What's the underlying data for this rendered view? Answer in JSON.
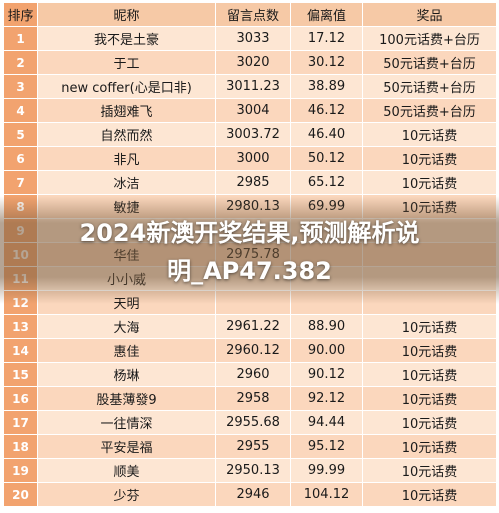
{
  "table": {
    "headers": {
      "idx": "排序",
      "name": "昵称",
      "score": "留言点数",
      "bias": "偏离值",
      "prize": "奖品"
    },
    "rows": [
      {
        "idx": "1",
        "name": "我不是土豪",
        "score": "3033",
        "bias": "17.12",
        "prize": "100元话费+台历"
      },
      {
        "idx": "2",
        "name": "于工",
        "score": "3020",
        "bias": "30.12",
        "prize": "50元话费+台历"
      },
      {
        "idx": "3",
        "name": "new coffer(心是口非)",
        "score": "3011.23",
        "bias": "38.89",
        "prize": "50元话费+台历"
      },
      {
        "idx": "4",
        "name": "插翅难飞",
        "score": "3004",
        "bias": "46.12",
        "prize": "50元话费+台历"
      },
      {
        "idx": "5",
        "name": "自然而然",
        "score": "3003.72",
        "bias": "46.40",
        "prize": "10元话费"
      },
      {
        "idx": "6",
        "name": "非凡",
        "score": "3000",
        "bias": "50.12",
        "prize": "10元话费"
      },
      {
        "idx": "7",
        "name": "冰洁",
        "score": "2985",
        "bias": "65.12",
        "prize": "10元话费"
      },
      {
        "idx": "8",
        "name": "敏捷",
        "score": "2980.13",
        "bias": "69.99",
        "prize": "10元话费"
      },
      {
        "idx": "9",
        "name": "",
        "score": "",
        "bias": "",
        "prize": ""
      },
      {
        "idx": "10",
        "name": "华佳",
        "score": "2975.78",
        "bias": "",
        "prize": ""
      },
      {
        "idx": "11",
        "name": "小小威",
        "score": "",
        "bias": "",
        "prize": ""
      },
      {
        "idx": "12",
        "name": "天明",
        "score": "",
        "bias": "",
        "prize": ""
      },
      {
        "idx": "13",
        "name": "大海",
        "score": "2961.22",
        "bias": "88.90",
        "prize": "10元话费"
      },
      {
        "idx": "14",
        "name": "惠佳",
        "score": "2960.12",
        "bias": "90.00",
        "prize": "10元话费"
      },
      {
        "idx": "15",
        "name": "杨琳",
        "score": "2960",
        "bias": "90.12",
        "prize": "10元话费"
      },
      {
        "idx": "16",
        "name": "股基薄發9",
        "score": "2958",
        "bias": "92.12",
        "prize": "10元话费"
      },
      {
        "idx": "17",
        "name": "一往情深",
        "score": "2955.68",
        "bias": "94.44",
        "prize": "10元话费"
      },
      {
        "idx": "18",
        "name": "平安是福",
        "score": "2955",
        "bias": "95.12",
        "prize": "10元话费"
      },
      {
        "idx": "19",
        "name": "顺美",
        "score": "2950.13",
        "bias": "99.99",
        "prize": "10元话费"
      },
      {
        "idx": "20",
        "name": "少芬",
        "score": "2946",
        "bias": "104.12",
        "prize": "10元话费"
      }
    ]
  },
  "overlay": {
    "headline_line1": "2024新澳开奖结果,预测解析说",
    "headline_line2": "明_AP47.382"
  },
  "colors": {
    "header_bg": "#f6c9a6",
    "index_bg": "#f2a36f",
    "row_light": "#fde6d3",
    "row_dark": "#fbd7bd",
    "headline_text": "#ffffff"
  }
}
